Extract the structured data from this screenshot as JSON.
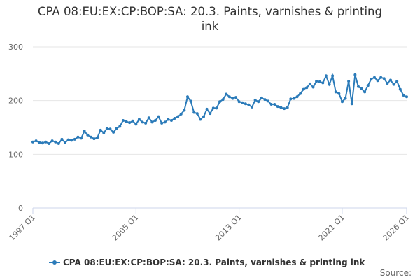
{
  "chart_data": {
    "type": "line",
    "title": "CPA 08:EU:EX:CP:BOP:SA: 20.3. Paints, varnishes & printing ink",
    "source": "Source:",
    "categories": [
      "1997 Q1",
      null,
      null,
      null,
      null,
      null,
      null,
      null,
      null,
      null,
      null,
      null,
      null,
      null,
      null,
      null,
      null,
      null,
      null,
      null,
      null,
      null,
      null,
      null,
      null,
      null,
      null,
      null,
      null,
      null,
      null,
      null,
      "2005 Q1",
      null,
      null,
      null,
      null,
      null,
      null,
      null,
      null,
      null,
      null,
      null,
      null,
      null,
      null,
      null,
      null,
      null,
      null,
      null,
      null,
      null,
      null,
      null,
      null,
      null,
      null,
      null,
      null,
      null,
      null,
      null,
      "2013 Q1",
      null,
      null,
      null,
      null,
      null,
      null,
      null,
      null,
      null,
      null,
      null,
      null,
      null,
      null,
      null,
      null,
      null,
      null,
      null,
      null,
      null,
      null,
      null,
      null,
      null,
      null,
      null,
      null,
      null,
      null,
      null,
      "2021 Q1",
      null,
      null,
      null,
      null,
      null,
      null,
      null,
      null,
      null,
      null,
      null,
      null,
      null,
      null,
      null,
      null,
      null,
      null,
      null,
      "2026 Q1"
    ],
    "series": [
      {
        "name": "CPA 08:EU:EX:CP:BOP:SA: 20.3. Paints, varnishes & printing ink",
        "color": "#2b7bb9",
        "values": [
          123,
          125,
          122,
          121,
          123,
          120,
          125,
          123,
          120,
          128,
          122,
          127,
          126,
          128,
          132,
          130,
          143,
          136,
          132,
          129,
          131,
          145,
          140,
          148,
          147,
          141,
          148,
          152,
          163,
          161,
          159,
          162,
          156,
          165,
          160,
          158,
          168,
          160,
          163,
          170,
          158,
          160,
          165,
          163,
          167,
          170,
          175,
          182,
          207,
          199,
          178,
          176,
          165,
          170,
          184,
          176,
          186,
          186,
          198,
          202,
          212,
          207,
          204,
          206,
          198,
          196,
          194,
          192,
          188,
          201,
          198,
          205,
          202,
          199,
          193,
          193,
          189,
          187,
          185,
          187,
          203,
          204,
          207,
          213,
          221,
          224,
          231,
          225,
          236,
          235,
          233,
          246,
          230,
          246,
          216,
          213,
          198,
          204,
          236,
          194,
          248,
          226,
          222,
          216,
          228,
          240,
          243,
          237,
          243,
          241,
          232,
          238,
          230,
          236,
          221,
          210,
          207
        ]
      }
    ],
    "ylim": [
      0,
      300
    ],
    "yticks": [
      0,
      100,
      200,
      300
    ],
    "grid": true
  }
}
